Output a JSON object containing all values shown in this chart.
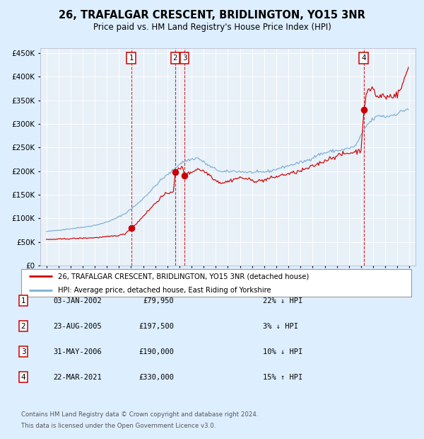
{
  "title": "26, TRAFALGAR CRESCENT, BRIDLINGTON, YO15 3NR",
  "subtitle": "Price paid vs. HM Land Registry's House Price Index (HPI)",
  "legend_label_red": "26, TRAFALGAR CRESCENT, BRIDLINGTON, YO15 3NR (detached house)",
  "legend_label_blue": "HPI: Average price, detached house, East Riding of Yorkshire",
  "transactions": [
    {
      "num": 1,
      "date": "03-JAN-2002",
      "date_val": 2002.01,
      "price": 79950,
      "pct": "22%",
      "dir": "↓"
    },
    {
      "num": 2,
      "date": "23-AUG-2005",
      "date_val": 2005.64,
      "price": 197500,
      "pct": "3%",
      "dir": "↓"
    },
    {
      "num": 3,
      "date": "31-MAY-2006",
      "date_val": 2006.41,
      "price": 190000,
      "pct": "10%",
      "dir": "↓"
    },
    {
      "num": 4,
      "date": "22-MAR-2021",
      "date_val": 2021.22,
      "price": 330000,
      "pct": "15%",
      "dir": "↑"
    }
  ],
  "red_color": "#cc0000",
  "blue_color": "#7ab0d4",
  "fig_bg": "#ddeeff",
  "plot_bg": "#e8f0f8",
  "grid_color": "#ffffff",
  "box_edge_color": "#cc0000",
  "ylim": [
    0,
    460000
  ],
  "xlim": [
    1994.5,
    2025.5
  ],
  "yticks": [
    0,
    50000,
    100000,
    150000,
    200000,
    250000,
    300000,
    350000,
    400000,
    450000
  ],
  "footer_line1": "Contains HM Land Registry data © Crown copyright and database right 2024.",
  "footer_line2": "This data is licensed under the Open Government Licence v3.0.",
  "copyright_color": "#555555"
}
